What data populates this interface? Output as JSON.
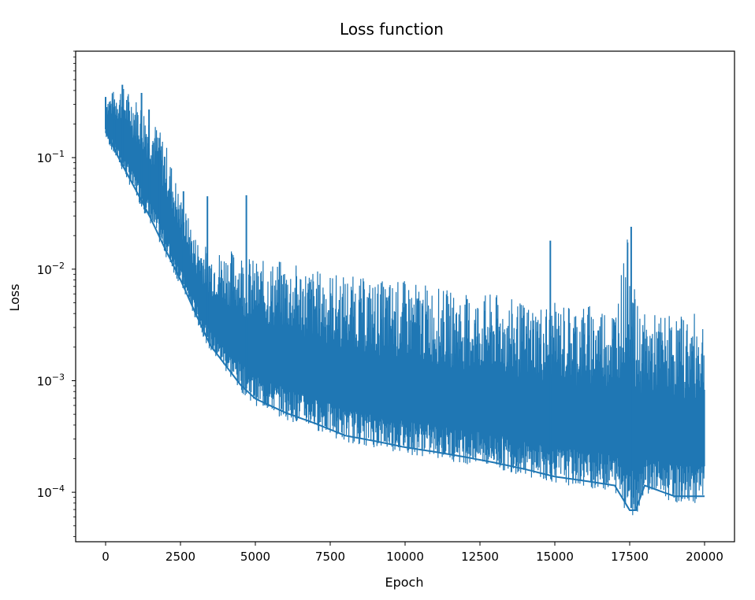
{
  "chart_data": {
    "type": "line",
    "title": "Loss function",
    "xlabel": "Epoch",
    "ylabel": "Loss",
    "x_range": [
      -1000,
      21000
    ],
    "ylim": [
      3.6e-05,
      0.9
    ],
    "y_scale": "log",
    "grid": false,
    "legend": "none",
    "line_color": "#1f77b4",
    "x_ticks": [
      {
        "value": 0,
        "label": "0"
      },
      {
        "value": 2500,
        "label": "2500"
      },
      {
        "value": 5000,
        "label": "5000"
      },
      {
        "value": 7500,
        "label": "7500"
      },
      {
        "value": 10000,
        "label": "10000"
      },
      {
        "value": 12500,
        "label": "12500"
      },
      {
        "value": 15000,
        "label": "15000"
      },
      {
        "value": 17500,
        "label": "17500"
      },
      {
        "value": 20000,
        "label": "20000"
      }
    ],
    "y_ticks": [
      {
        "value": 0.1,
        "base": "10",
        "exp": "−1"
      },
      {
        "value": 0.01,
        "base": "10",
        "exp": "−2"
      },
      {
        "value": 0.001,
        "base": "10",
        "exp": "−3"
      },
      {
        "value": 0.0001,
        "base": "10",
        "exp": "−4"
      }
    ],
    "series": [
      {
        "x": [
          0,
          500,
          1000,
          1500,
          2000,
          2500,
          3000,
          3500,
          4000,
          4500,
          5000,
          6000,
          7000,
          8000,
          9000,
          10000,
          11000,
          12000,
          13000,
          14000,
          15000,
          16000,
          17000,
          17500,
          17700,
          18000,
          19000,
          20000
        ],
        "upper": [
          0.35,
          0.45,
          0.35,
          0.25,
          0.14,
          0.045,
          0.02,
          0.015,
          0.015,
          0.015,
          0.012,
          0.012,
          0.01,
          0.009,
          0.008,
          0.008,
          0.007,
          0.006,
          0.006,
          0.005,
          0.005,
          0.005,
          0.005,
          0.024,
          0.005,
          0.004,
          0.004,
          0.004
        ],
        "lower": [
          0.15,
          0.08,
          0.045,
          0.025,
          0.013,
          0.007,
          0.0035,
          0.0018,
          0.0012,
          0.0008,
          0.0006,
          0.00045,
          0.00036,
          0.00028,
          0.00025,
          0.00022,
          0.0002,
          0.00018,
          0.00016,
          0.00014,
          0.00012,
          0.00011,
          0.0001,
          6e-05,
          6e-05,
          0.0001,
          8e-05,
          8e-05
        ],
        "spikes": [
          {
            "x": 0,
            "y": 0.35
          },
          {
            "x": 300,
            "y": 0.22
          },
          {
            "x": 560,
            "y": 0.45
          },
          {
            "x": 1200,
            "y": 0.38
          },
          {
            "x": 1450,
            "y": 0.27
          },
          {
            "x": 1800,
            "y": 0.15
          },
          {
            "x": 2600,
            "y": 0.05
          },
          {
            "x": 3400,
            "y": 0.045
          },
          {
            "x": 4700,
            "y": 0.046
          },
          {
            "x": 14850,
            "y": 0.018
          },
          {
            "x": 17550,
            "y": 0.024
          }
        ]
      }
    ]
  }
}
